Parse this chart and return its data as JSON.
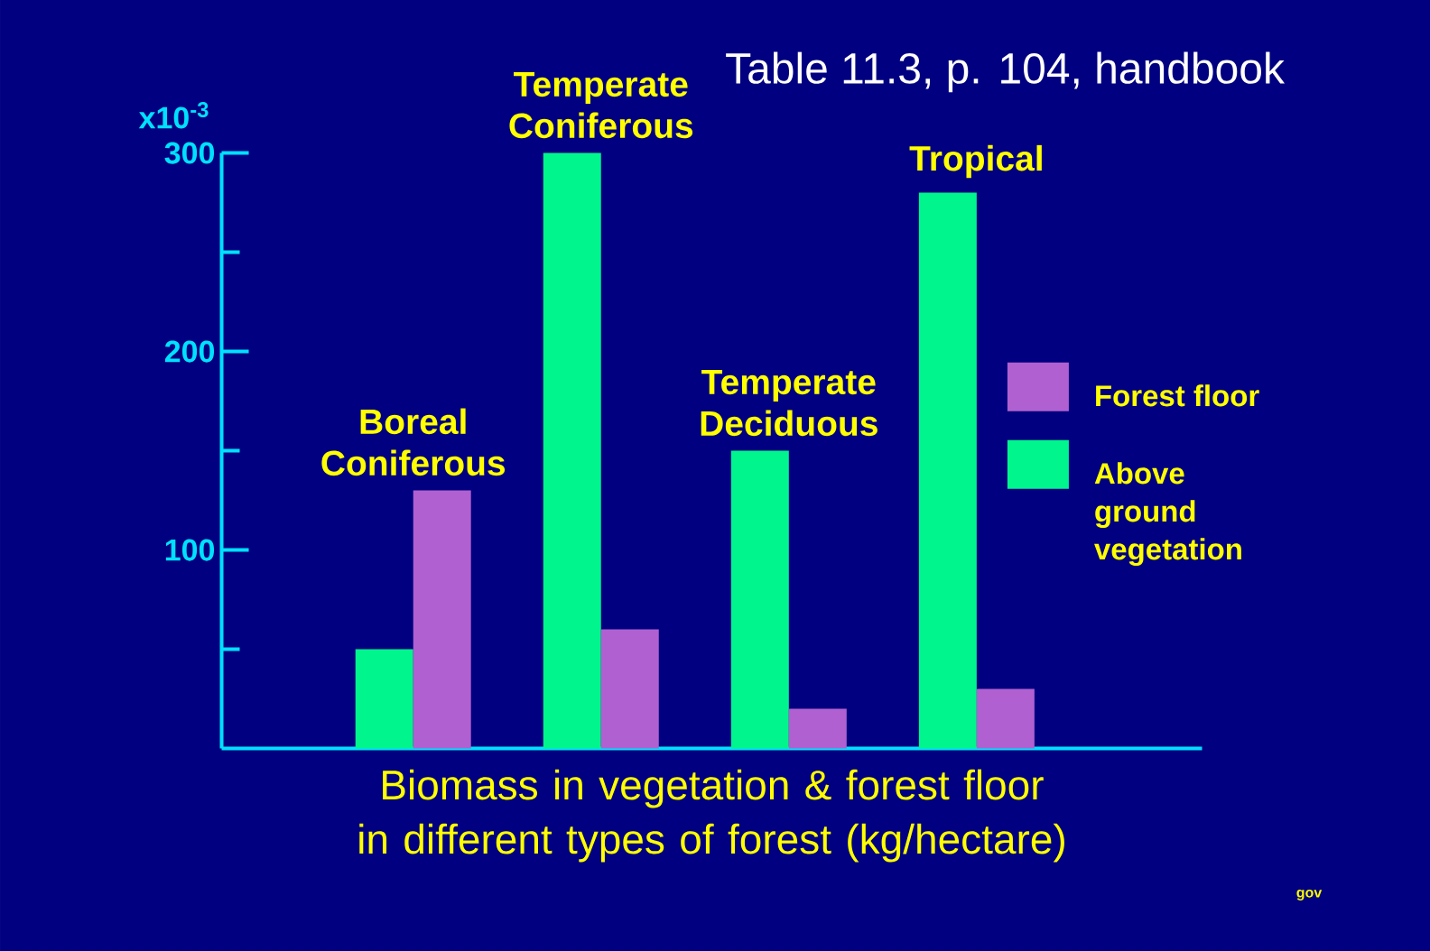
{
  "chart_data": {
    "type": "bar",
    "ylabel": "x10$^{-3}$",
    "xlabel": "Biomass in vegetation & forest floor in different types of forest (kg/hectare)",
    "annotations": [
      "Table 11.3, p. 104, handbook",
      "gov"
    ],
    "categories": [
      "Boreal Coniferous",
      "Temperate Coniferous",
      "Temperate Deciduous",
      "Tropical"
    ],
    "series": [
      {
        "name": "Above ground vegetation",
        "color": "#00f58c",
        "values": [
          50,
          300,
          150,
          280
        ]
      },
      {
        "name": "Forest floor",
        "color": "#b060d0",
        "values": [
          130,
          60,
          20,
          30
        ]
      }
    ],
    "ylim": [
      0,
      300
    ],
    "yticks": [
      {
        "value": 50,
        "label": null
      },
      100,
      {
        "value": 150,
        "label": null
      },
      200,
      {
        "value": 250,
        "label": null
      },
      300
    ],
    "legend": "right"
  }
}
